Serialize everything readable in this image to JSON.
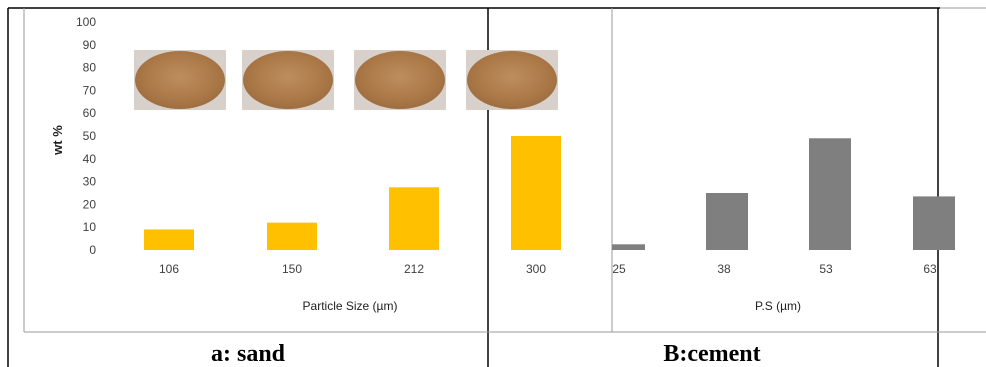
{
  "captions": {
    "a": "a: sand",
    "b": "B:cement"
  },
  "chart_data": [
    {
      "type": "bar",
      "categories": [
        "106",
        "150",
        "212",
        "300"
      ],
      "values": [
        9,
        12,
        27.5,
        50
      ],
      "title": "",
      "xlabel": "Particle Size (µm)",
      "ylabel": "wt %",
      "ylim": [
        0,
        100
      ],
      "yticks": [
        0,
        10,
        20,
        30,
        40,
        50,
        60,
        70,
        80,
        90,
        100
      ],
      "grid": false,
      "bar_color": "#FFC000"
    },
    {
      "type": "bar",
      "categories": [
        "25",
        "38",
        "53",
        "63"
      ],
      "values": [
        2.5,
        25,
        49,
        23.5
      ],
      "title": "",
      "xlabel": "P.S (µm)",
      "ylabel": "",
      "ylim": [
        0,
        100
      ],
      "grid": false,
      "bar_color": "#7F7F7F"
    }
  ],
  "photo_colors": {
    "sample": "#B07E50",
    "background": "#D8D0CA"
  }
}
